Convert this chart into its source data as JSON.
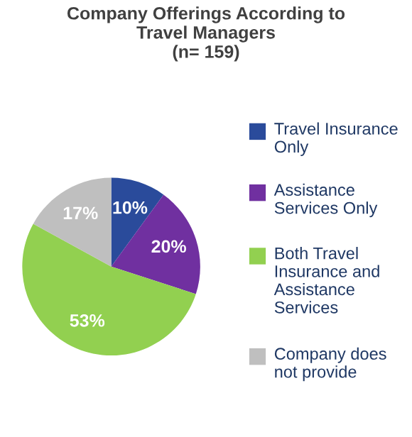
{
  "chart_data": {
    "type": "pie",
    "title": "Company Offerings According to\nTravel Managers\n(n= 159)",
    "categories": [
      "Travel Insurance Only",
      "Assistance Services Only",
      "Both Travel Insurance and Assistance Services",
      "Company does not provide"
    ],
    "values": [
      10,
      20,
      53,
      17
    ],
    "colors": [
      "#2a4b9b",
      "#7030a0",
      "#92d050",
      "#bfbfbf"
    ],
    "value_labels": [
      "10%",
      "20%",
      "53%",
      "17%"
    ],
    "legend": "right"
  }
}
